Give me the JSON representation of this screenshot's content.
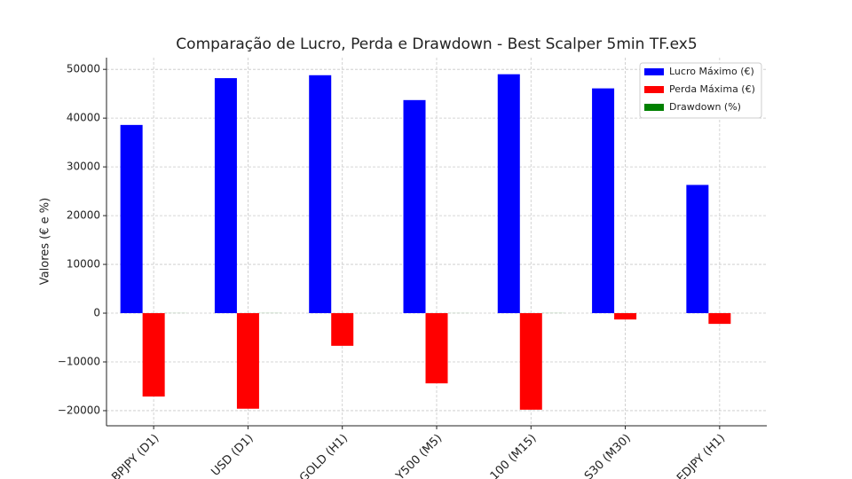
{
  "chart_data": {
    "type": "bar",
    "title": "Comparação de Lucro, Perda e Drawdown - Best Scalper 5min TF.ex5",
    "y_label": "Valores (€ e %)",
    "categories": [
      "BPJPY (D1)",
      "USD (D1)",
      "GOLD (H1)",
      "Y500 (M5)",
      "100 (M15)",
      "S30 (M30)",
      "EDJPY (H1)"
    ],
    "series": [
      {
        "name": "Lucro Máximo (€)",
        "color": "#0000ff",
        "values": [
          38600,
          48200,
          48800,
          43700,
          49000,
          46100,
          26300
        ]
      },
      {
        "name": "Perda Máxima (€)",
        "color": "#ff0000",
        "values": [
          -17100,
          -19600,
          -6700,
          -14400,
          -19800,
          -1300,
          -2200
        ]
      },
      {
        "name": "Drawdown (%)",
        "color": "#008000",
        "values": [
          17,
          20,
          7,
          14,
          20,
          1,
          2
        ]
      }
    ],
    "ylim": [
      -23100,
      52400
    ],
    "yticks": [
      {
        "value": -20000,
        "label": "−20000"
      },
      {
        "value": -10000,
        "label": "−10000"
      },
      0,
      10000,
      20000,
      30000,
      40000,
      50000
    ],
    "grid": true,
    "legend": "upper right"
  }
}
